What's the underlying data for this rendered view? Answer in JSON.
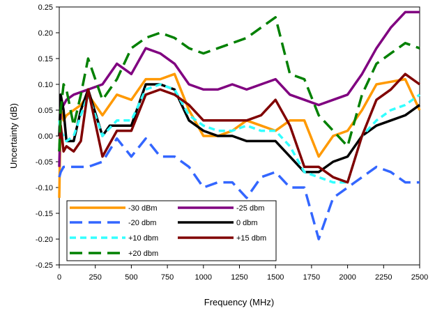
{
  "chart_data": {
    "type": "line",
    "xlabel": "Frequency (MHz)",
    "ylabel": "Uncertainty (dB)",
    "xlim": [
      0,
      2500
    ],
    "ylim": [
      -0.25,
      0.25
    ],
    "xticks": [
      0,
      250,
      500,
      750,
      1000,
      1250,
      1500,
      1750,
      2000,
      2250,
      2500
    ],
    "yticks": [
      -0.25,
      -0.2,
      -0.15,
      -0.1,
      -0.05,
      0.0,
      0.05,
      0.1,
      0.15,
      0.2,
      0.25
    ],
    "xtick_labels": [
      "0",
      "250",
      "500",
      "750",
      "1000",
      "1250",
      "1500",
      "1750",
      "2000",
      "2250",
      "2500"
    ],
    "ytick_labels": [
      "-0.25",
      "-0.20",
      "-0.15",
      "-0.10",
      "-0.05",
      "0.00",
      "0.05",
      "0.10",
      "0.15",
      "0.20",
      "0.25"
    ],
    "grid": false,
    "legend_position": "bottom-left",
    "series": [
      {
        "name": "-30 dBm",
        "color": "#ff9900",
        "dash": "solid",
        "x": [
          0,
          10,
          30,
          50,
          100,
          150,
          200,
          300,
          400,
          500,
          600,
          700,
          800,
          900,
          1000,
          1100,
          1200,
          1300,
          1400,
          1500,
          1600,
          1700,
          1800,
          1900,
          2000,
          2100,
          2200,
          2300,
          2400,
          2500
        ],
        "y": [
          -0.12,
          0.05,
          0.03,
          0.04,
          0.05,
          0.06,
          0.08,
          0.04,
          0.08,
          0.07,
          0.11,
          0.11,
          0.12,
          0.05,
          0.0,
          0.0,
          0.01,
          0.03,
          0.02,
          0.01,
          0.03,
          0.03,
          -0.04,
          0.0,
          0.01,
          0.05,
          0.1,
          0.105,
          0.11,
          0.05
        ]
      },
      {
        "name": "-25 dbm",
        "color": "#800080",
        "dash": "solid",
        "x": [
          0,
          10,
          30,
          50,
          100,
          150,
          200,
          300,
          400,
          500,
          600,
          700,
          800,
          900,
          1000,
          1100,
          1200,
          1300,
          1400,
          1500,
          1600,
          1700,
          1800,
          1900,
          2000,
          2100,
          2200,
          2300,
          2400,
          2500
        ],
        "y": [
          -0.06,
          0.05,
          0.06,
          0.07,
          0.08,
          0.085,
          0.09,
          0.1,
          0.14,
          0.12,
          0.17,
          0.16,
          0.14,
          0.1,
          0.09,
          0.09,
          0.1,
          0.09,
          0.1,
          0.11,
          0.08,
          0.07,
          0.06,
          0.07,
          0.08,
          0.12,
          0.17,
          0.21,
          0.24,
          0.24
        ]
      },
      {
        "name": "-20 dbm",
        "color": "#3366ff",
        "dash": "long-dash",
        "x": [
          0,
          10,
          30,
          50,
          100,
          150,
          200,
          300,
          400,
          500,
          600,
          700,
          800,
          900,
          1000,
          1100,
          1200,
          1300,
          1400,
          1500,
          1600,
          1700,
          1800,
          1900,
          2000,
          2100,
          2200,
          2300,
          2400,
          2500
        ],
        "y": [
          -0.08,
          -0.07,
          -0.06,
          -0.06,
          -0.06,
          -0.06,
          -0.06,
          -0.05,
          -0.005,
          -0.04,
          -0.005,
          -0.04,
          -0.04,
          -0.06,
          -0.1,
          -0.09,
          -0.09,
          -0.12,
          -0.08,
          -0.07,
          -0.1,
          -0.1,
          -0.2,
          -0.12,
          -0.1,
          -0.08,
          -0.06,
          -0.07,
          -0.09,
          -0.09
        ]
      },
      {
        "name": "0 dbm",
        "color": "#000000",
        "dash": "solid",
        "x": [
          0,
          10,
          30,
          50,
          100,
          150,
          200,
          300,
          350,
          400,
          500,
          600,
          700,
          800,
          900,
          1000,
          1100,
          1200,
          1300,
          1400,
          1500,
          1600,
          1700,
          1800,
          1900,
          2000,
          2100,
          2200,
          2300,
          2400,
          2500
        ],
        "y": [
          0.0,
          0.08,
          0.05,
          -0.01,
          -0.01,
          0.05,
          0.09,
          0.0,
          0.02,
          0.02,
          0.02,
          0.1,
          0.1,
          0.09,
          0.03,
          0.01,
          0.0,
          0.0,
          -0.01,
          -0.01,
          -0.01,
          -0.04,
          -0.07,
          -0.07,
          -0.05,
          -0.04,
          0.0,
          0.02,
          0.03,
          0.04,
          0.06
        ]
      },
      {
        "name": "+10 dbm",
        "color": "#33ffff",
        "dash": "dash",
        "x": [
          0,
          10,
          30,
          50,
          100,
          150,
          200,
          300,
          400,
          500,
          600,
          700,
          800,
          900,
          1000,
          1100,
          1200,
          1300,
          1400,
          1500,
          1600,
          1700,
          1800,
          1900,
          2000,
          2100,
          2200,
          2300,
          2400,
          2500
        ],
        "y": [
          0.03,
          0.01,
          0.0,
          -0.01,
          0.0,
          0.04,
          0.08,
          0.0,
          0.03,
          0.03,
          0.09,
          0.1,
          0.09,
          0.04,
          0.02,
          0.01,
          0.01,
          0.02,
          0.01,
          0.01,
          -0.02,
          -0.07,
          -0.08,
          -0.09,
          -0.09,
          0.0,
          0.03,
          0.05,
          0.06,
          0.08
        ]
      },
      {
        "name": "+15 dbm",
        "color": "#800000",
        "dash": "solid",
        "x": [
          0,
          10,
          30,
          50,
          100,
          150,
          200,
          300,
          400,
          500,
          600,
          700,
          800,
          900,
          1000,
          1100,
          1200,
          1300,
          1400,
          1500,
          1600,
          1700,
          1800,
          1900,
          2000,
          2100,
          2200,
          2300,
          2400,
          2500
        ],
        "y": [
          -0.03,
          0.02,
          -0.03,
          -0.02,
          -0.03,
          -0.01,
          0.09,
          -0.04,
          0.01,
          0.01,
          0.08,
          0.09,
          0.08,
          0.06,
          0.03,
          0.03,
          0.03,
          0.03,
          0.04,
          0.07,
          0.02,
          -0.06,
          -0.06,
          -0.08,
          -0.09,
          0.0,
          0.07,
          0.09,
          0.12,
          0.1
        ]
      },
      {
        "name": "+20 dbm",
        "color": "#008000",
        "dash": "long-dash",
        "x": [
          0,
          10,
          30,
          50,
          100,
          150,
          200,
          300,
          400,
          500,
          600,
          700,
          800,
          900,
          1000,
          1100,
          1200,
          1300,
          1400,
          1500,
          1600,
          1700,
          1800,
          1900,
          2000,
          2100,
          2200,
          2300,
          2400,
          2500
        ],
        "y": [
          -0.03,
          0.05,
          0.1,
          0.09,
          0.02,
          0.08,
          0.15,
          0.07,
          0.11,
          0.17,
          0.19,
          0.2,
          0.19,
          0.17,
          0.16,
          0.17,
          0.18,
          0.19,
          0.21,
          0.23,
          0.12,
          0.11,
          0.04,
          0.01,
          -0.02,
          0.08,
          0.14,
          0.16,
          0.18,
          0.17
        ]
      }
    ]
  }
}
